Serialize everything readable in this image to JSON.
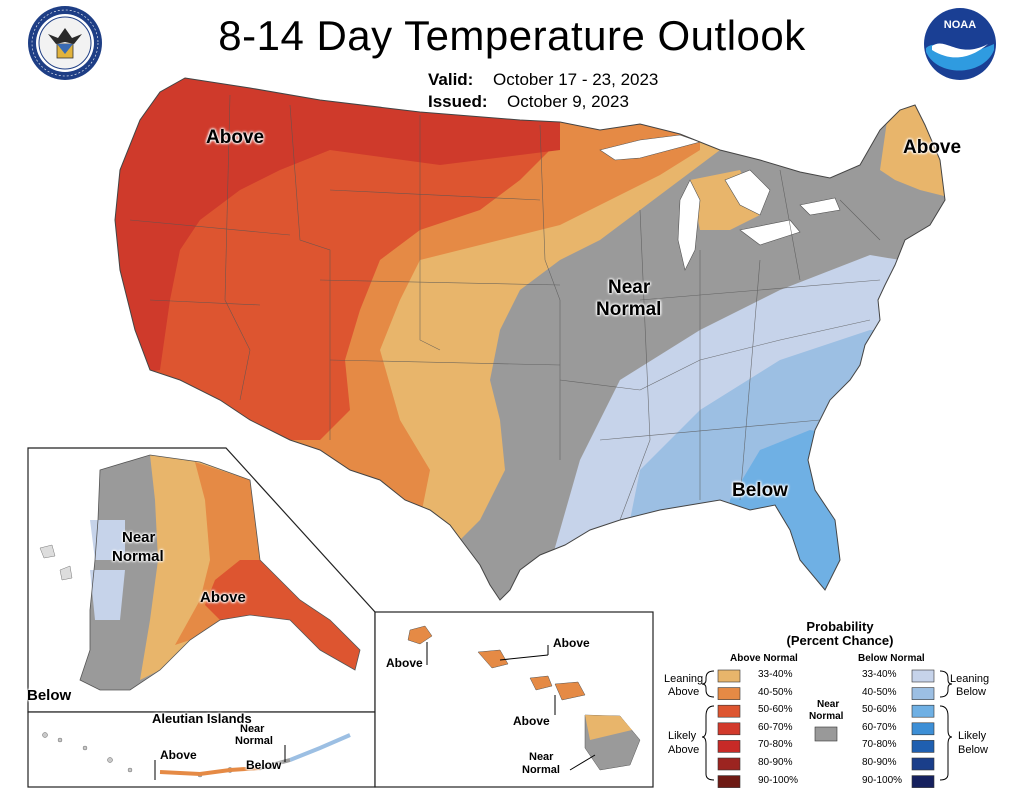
{
  "title": "8-14 Day Temperature Outlook",
  "valid_label": "Valid:",
  "valid_value": "October 17 - 23, 2023",
  "issued_label": "Issued:",
  "issued_value": "October 9, 2023",
  "logos": {
    "left": "department-of-commerce-seal",
    "right": "noaa-logo"
  },
  "map_labels": {
    "conus_above_west": "Above",
    "conus_above_ne": "Above",
    "conus_near_normal_1": "Near",
    "conus_near_normal_2": "Normal",
    "conus_below": "Below",
    "alaska_near_normal_1": "Near",
    "alaska_near_normal_2": "Normal",
    "alaska_above": "Above",
    "alaska_below": "Below",
    "aleutian_title": "Aleutian Islands",
    "aleutian_above": "Above",
    "aleutian_near_1": "Near",
    "aleutian_near_2": "Normal",
    "aleutian_below": "Below",
    "hawaii_above_1": "Above",
    "hawaii_above_2": "Above",
    "hawaii_above_3": "Above",
    "hawaii_near_1": "Near",
    "hawaii_near_2": "Normal"
  },
  "legend": {
    "title_1": "Probability",
    "title_2": "(Percent Chance)",
    "above_header": "Above Normal",
    "below_header": "Below Normal",
    "leaning_above_1": "Leaning",
    "leaning_above_2": "Above",
    "likely_above_1": "Likely",
    "likely_above_2": "Above",
    "near_normal_1": "Near",
    "near_normal_2": "Normal",
    "leaning_below_1": "Leaning",
    "leaning_below_2": "Below",
    "likely_below_1": "Likely",
    "likely_below_2": "Below",
    "above_bins": [
      {
        "label": "33-40%",
        "color": "#e8b56b"
      },
      {
        "label": "40-50%",
        "color": "#e58a45"
      },
      {
        "label": "50-60%",
        "color": "#dd5530"
      },
      {
        "label": "60-70%",
        "color": "#d23a2c"
      },
      {
        "label": "70-80%",
        "color": "#c72a27"
      },
      {
        "label": "80-90%",
        "color": "#9c2420"
      },
      {
        "label": "90-100%",
        "color": "#6e1a14"
      }
    ],
    "below_bins": [
      {
        "label": "33-40%",
        "color": "#c6d3ea"
      },
      {
        "label": "40-50%",
        "color": "#9cbfe3"
      },
      {
        "label": "50-60%",
        "color": "#6fb0e4"
      },
      {
        "label": "60-70%",
        "color": "#3d8fd6"
      },
      {
        "label": "70-80%",
        "color": "#1f5fb0"
      },
      {
        "label": "80-90%",
        "color": "#1a3e8a"
      },
      {
        "label": "90-100%",
        "color": "#15205e"
      }
    ],
    "near_color": "#999999"
  }
}
